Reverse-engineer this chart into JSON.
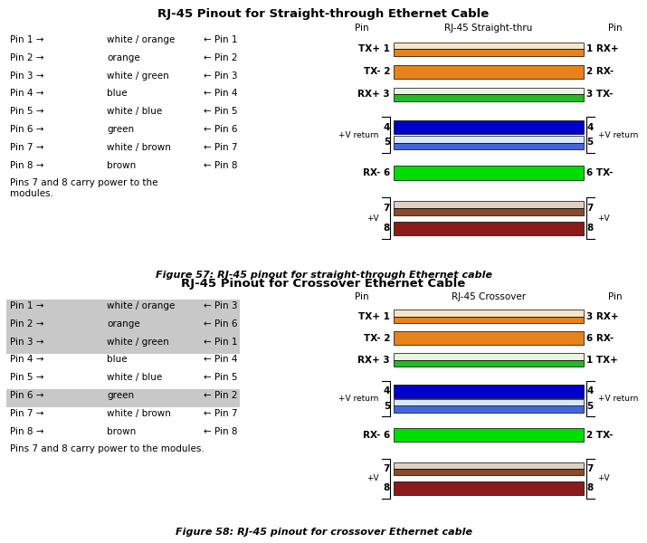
{
  "fig_width": 7.15,
  "fig_height": 6.0,
  "bg_color": "#ffffff",
  "top_title": "RJ-45 Pinout for Straight-through Ethernet Cable",
  "bottom_title": "RJ-45 Pinout for Crossover Ethernet Cable",
  "figure57_caption": "Figure 57: RJ-45 pinout for straight-through Ethernet cable",
  "figure58_caption": "Figure 58: RJ-45 pinout for crossover Ethernet cable",
  "straight_pins": [
    {
      "left": "Pin 1 →",
      "color_name": "white / orange",
      "right": "← Pin 1"
    },
    {
      "left": "Pin 2 →",
      "color_name": "orange",
      "right": "← Pin 2"
    },
    {
      "left": "Pin 3 →",
      "color_name": "white / green",
      "right": "← Pin 3"
    },
    {
      "left": "Pin 4 →",
      "color_name": "blue",
      "right": "← Pin 4"
    },
    {
      "left": "Pin 5 →",
      "color_name": "white / blue",
      "right": "← Pin 5"
    },
    {
      "left": "Pin 6 →",
      "color_name": "green",
      "right": "← Pin 6"
    },
    {
      "left": "Pin 7 →",
      "color_name": "white / brown",
      "right": "← Pin 7"
    },
    {
      "left": "Pin 8 →",
      "color_name": "brown",
      "right": "← Pin 8"
    }
  ],
  "straight_note": "Pins 7 and 8 carry power to the\nmodules.",
  "crossover_pins": [
    {
      "left": "Pin 1 →",
      "color_name": "white / orange",
      "right": "← Pin 3",
      "highlight": true
    },
    {
      "left": "Pin 2 →",
      "color_name": "orange",
      "right": "← Pin 6",
      "highlight": true
    },
    {
      "left": "Pin 3 →",
      "color_name": "white / green",
      "right": "← Pin 1",
      "highlight": true
    },
    {
      "left": "Pin 4 →",
      "color_name": "blue",
      "right": "← Pin 4",
      "highlight": false
    },
    {
      "left": "Pin 5 →",
      "color_name": "white / blue",
      "right": "← Pin 5",
      "highlight": false
    },
    {
      "left": "Pin 6 →",
      "color_name": "green",
      "right": "← Pin 2",
      "highlight": true
    },
    {
      "left": "Pin 7 →",
      "color_name": "white / brown",
      "right": "← Pin 7",
      "highlight": false
    },
    {
      "left": "Pin 8 →",
      "color_name": "brown",
      "right": "← Pin 8",
      "highlight": false
    }
  ],
  "crossover_note": "Pins 7 and 8 carry power to the modules.",
  "highlight_color": "#c8c8c8",
  "wire_colors": {
    "white / orange": [
      "#f5e6c8",
      "#e8821a"
    ],
    "orange": [
      "#e8821a"
    ],
    "white / green": [
      "#e8f5e0",
      "#22bb22"
    ],
    "blue": [
      "#0000cc"
    ],
    "white / blue": [
      "#d8e8ff",
      "#4466dd"
    ],
    "green": [
      "#00dd00"
    ],
    "white / brown": [
      "#e0d0c0",
      "#8b4a2a"
    ],
    "brown": [
      "#8b1a1a"
    ]
  },
  "wire_order": [
    "white / orange",
    "orange",
    "white / green",
    "blue",
    "white / blue",
    "green",
    "white / brown",
    "brown"
  ]
}
